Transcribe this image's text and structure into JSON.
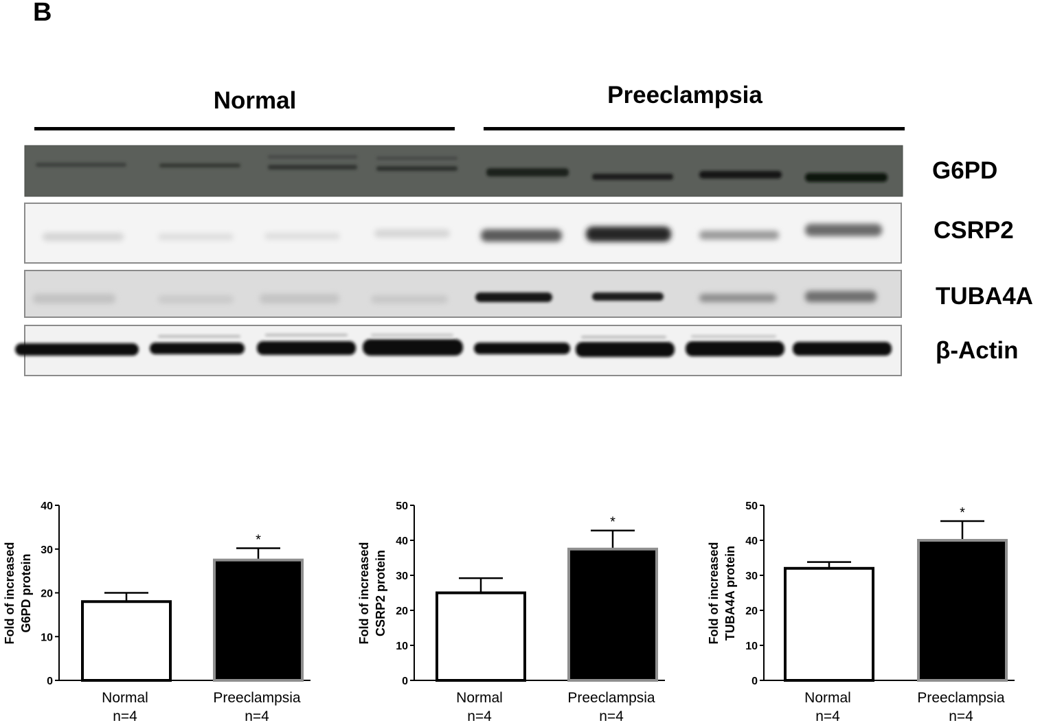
{
  "panel_label": "B",
  "western_blot": {
    "groups": [
      "Normal",
      "Preeclampsia"
    ],
    "proteins": [
      "G6PD",
      "CSRP2",
      "TUBA4A",
      "β-Actin"
    ]
  },
  "chart_data": [
    {
      "type": "bar",
      "title": "",
      "ylabel": [
        "Fold of increased",
        "G6PD protein"
      ],
      "categories": [
        [
          "Normal",
          "n=4"
        ],
        [
          "Preeclampsia",
          "n=4"
        ]
      ],
      "values": [
        18,
        27.5
      ],
      "errors": [
        2,
        2.7
      ],
      "significance": [
        "",
        "*"
      ],
      "bar_fill": [
        "#ffffff",
        "#000000"
      ],
      "ylim": [
        0,
        40
      ],
      "yticks": [
        0,
        10,
        20,
        30,
        40
      ]
    },
    {
      "type": "bar",
      "title": "",
      "ylabel": [
        "Fold of increased",
        "CSRP2 protein"
      ],
      "categories": [
        [
          "Normal",
          "n=4"
        ],
        [
          "Preeclampsia",
          "n=4"
        ]
      ],
      "values": [
        25,
        37.5
      ],
      "errors": [
        4.2,
        5.3
      ],
      "significance": [
        "",
        "*"
      ],
      "bar_fill": [
        "#ffffff",
        "#000000"
      ],
      "ylim": [
        0,
        50
      ],
      "yticks": [
        0,
        10,
        20,
        30,
        40,
        50
      ]
    },
    {
      "type": "bar",
      "title": "",
      "ylabel": [
        "Fold of increased",
        "TUBA4A protein"
      ],
      "categories": [
        [
          "Normal",
          "n=4"
        ],
        [
          "Preeclampsia",
          "n=4"
        ]
      ],
      "values": [
        32,
        40
      ],
      "errors": [
        1.8,
        5.5
      ],
      "significance": [
        "",
        "*"
      ],
      "bar_fill": [
        "#ffffff",
        "#000000"
      ],
      "ylim": [
        0,
        50
      ],
      "yticks": [
        0,
        10,
        20,
        30,
        40,
        50
      ]
    }
  ]
}
